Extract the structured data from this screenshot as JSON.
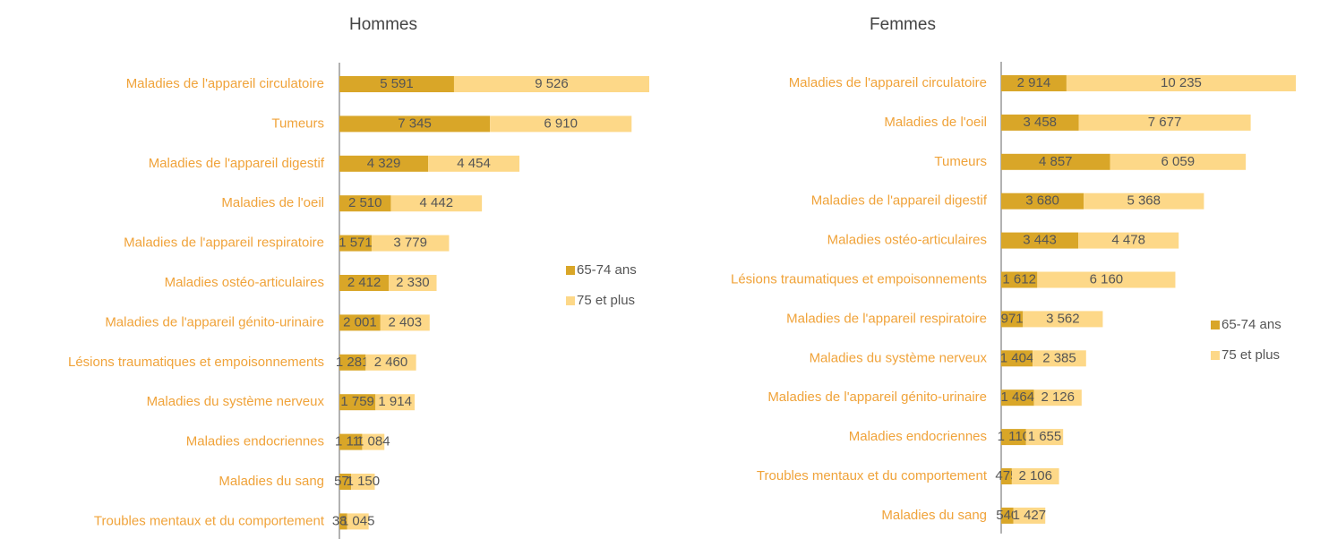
{
  "chart_data": [
    {
      "type": "bar",
      "orientation": "horizontal",
      "stacked": true,
      "title": "Hommes",
      "categories": [
        "Maladies de l'appareil circulatoire",
        "Tumeurs",
        "Maladies de l'appareil digestif",
        "Maladies de l'oeil",
        "Maladies de l'appareil respiratoire",
        "Maladies ostéo-articulaires",
        "Maladies de l'appareil génito-urinaire",
        "Lésions traumatiques et empoisonnements",
        "Maladies du système nerveux",
        "Maladies endocriennes",
        "Maladies du sang",
        "Troubles mentaux et du comportement"
      ],
      "series": [
        {
          "name": "65-74 ans",
          "color": "#d9a628",
          "values": [
            5591,
            7345,
            4329,
            2510,
            1571,
            2412,
            2001,
            1281,
            1759,
            1111,
            576,
            382
          ],
          "value_labels": [
            "5 591",
            "7 345",
            "4 329",
            "2 510",
            "1 571",
            "2 412",
            "2 001",
            "1 281",
            "1 759",
            "1 111",
            "576",
            "382"
          ]
        },
        {
          "name": "75 et plus",
          "color": "#fdd888",
          "values": [
            9526,
            6910,
            4454,
            4442,
            3779,
            2330,
            2403,
            2460,
            1914,
            1084,
            1150,
            1045
          ],
          "value_labels": [
            "9 526",
            "6 910",
            "4 454",
            "4 442",
            "3 779",
            "2 330",
            "2 403",
            "2 460",
            "1 914",
            "1 084",
            "1 150",
            "1 045"
          ]
        }
      ],
      "legend": "right"
    },
    {
      "type": "bar",
      "orientation": "horizontal",
      "stacked": true,
      "title": "Femmes",
      "categories": [
        "Maladies de l'appareil circulatoire",
        "Maladies de l'oeil",
        "Tumeurs",
        "Maladies de l'appareil digestif",
        "Maladies ostéo-articulaires",
        "Lésions traumatiques et empoisonnements",
        "Maladies de l'appareil respiratoire",
        "Maladies du système nerveux",
        "Maladies de l'appareil génito-urinaire",
        "Maladies endocriennes",
        "Troubles mentaux et du comportement",
        "Maladies du sang"
      ],
      "series": [
        {
          "name": "65-74 ans",
          "color": "#d9a628",
          "values": [
            2914,
            3458,
            4857,
            3680,
            3443,
            1612,
            971,
            1404,
            1464,
            1110,
            475,
            540
          ],
          "value_labels": [
            "2 914",
            "3 458",
            "4 857",
            "3 680",
            "3 443",
            "1 612",
            "971",
            "1 404",
            "1 464",
            "1 110",
            "475",
            "540"
          ]
        },
        {
          "name": "75 et plus",
          "color": "#fdd888",
          "values": [
            10235,
            7677,
            6059,
            5368,
            4478,
            6160,
            3562,
            2385,
            2126,
            1655,
            2106,
            1427
          ],
          "value_labels": [
            "10 235",
            "7 677",
            "6 059",
            "5 368",
            "4 478",
            "6 160",
            "3 562",
            "2 385",
            "2 126",
            "1 655",
            "2 106",
            "1 427"
          ]
        }
      ],
      "legend": "right"
    }
  ]
}
